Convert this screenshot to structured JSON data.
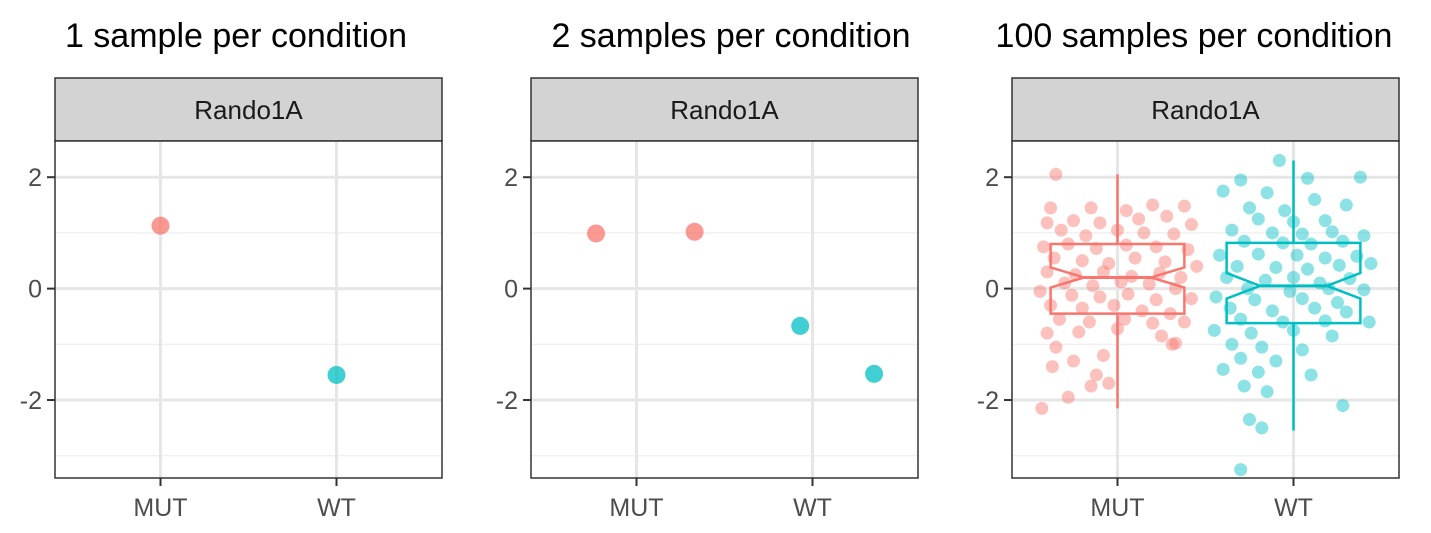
{
  "chart_data": [
    {
      "type": "scatter",
      "title": "1 sample per condition",
      "facet": "Rando1A",
      "categories": [
        "MUT",
        "WT"
      ],
      "ylim": [
        -3.4,
        2.65
      ],
      "yticks": [
        2,
        0,
        -2
      ],
      "ytick_labels": [
        "2",
        "0",
        "-2"
      ],
      "grid": true,
      "colors": {
        "MUT": "#F8766D",
        "WT": "#00BFC4"
      },
      "points": [
        {
          "group": "MUT",
          "x": 0,
          "y": 1.13
        },
        {
          "group": "WT",
          "x": 0,
          "y": -1.55
        }
      ]
    },
    {
      "type": "scatter",
      "title": "2 samples per condition",
      "facet": "Rando1A",
      "categories": [
        "MUT",
        "WT"
      ],
      "ylim": [
        -3.4,
        2.65
      ],
      "yticks": [
        2,
        0,
        -2
      ],
      "ytick_labels": [
        "2",
        "0",
        "-2"
      ],
      "grid": true,
      "colors": {
        "MUT": "#F8766D",
        "WT": "#00BFC4"
      },
      "points": [
        {
          "group": "MUT",
          "x": -0.23,
          "y": 0.99
        },
        {
          "group": "MUT",
          "x": 0.33,
          "y": 1.02
        },
        {
          "group": "WT",
          "x": -0.07,
          "y": -0.67
        },
        {
          "group": "WT",
          "x": 0.35,
          "y": -1.53
        }
      ]
    },
    {
      "type": "box",
      "title": "100 samples per condition",
      "facet": "Rando1A",
      "categories": [
        "MUT",
        "WT"
      ],
      "ylim": [
        -3.4,
        2.65
      ],
      "yticks": [
        2,
        0,
        -2
      ],
      "ytick_labels": [
        "2",
        "0",
        "-2"
      ],
      "grid": true,
      "notched": true,
      "colors": {
        "MUT": "#F8766D",
        "WT": "#00BFC4"
      },
      "boxes": [
        {
          "group": "MUT",
          "whisker_low": -2.15,
          "q1": -0.45,
          "median": 0.2,
          "q3": 0.8,
          "whisker_high": 2.05,
          "notch_low": 0.02,
          "notch_high": 0.38
        },
        {
          "group": "WT",
          "whisker_low": -2.55,
          "q1": -0.62,
          "median": 0.05,
          "q3": 0.82,
          "whisker_high": 2.3,
          "notch_low": -0.18,
          "notch_high": 0.28
        }
      ],
      "points": [
        {
          "group": "MUT",
          "x": -0.35,
          "y": 2.05
        },
        {
          "group": "MUT",
          "x": -0.38,
          "y": 1.45
        },
        {
          "group": "MUT",
          "x": -0.15,
          "y": 1.45
        },
        {
          "group": "MUT",
          "x": 0.05,
          "y": 1.4
        },
        {
          "group": "MUT",
          "x": 0.2,
          "y": 1.5
        },
        {
          "group": "MUT",
          "x": 0.38,
          "y": 1.48
        },
        {
          "group": "MUT",
          "x": -0.4,
          "y": 1.18
        },
        {
          "group": "MUT",
          "x": -0.25,
          "y": 1.22
        },
        {
          "group": "MUT",
          "x": -0.1,
          "y": 1.18
        },
        {
          "group": "MUT",
          "x": 0.12,
          "y": 1.25
        },
        {
          "group": "MUT",
          "x": 0.28,
          "y": 1.3
        },
        {
          "group": "MUT",
          "x": 0.42,
          "y": 1.15
        },
        {
          "group": "MUT",
          "x": -0.32,
          "y": 1.05
        },
        {
          "group": "MUT",
          "x": -0.18,
          "y": 0.95
        },
        {
          "group": "MUT",
          "x": 0.0,
          "y": 1.05
        },
        {
          "group": "MUT",
          "x": 0.15,
          "y": 1.0
        },
        {
          "group": "MUT",
          "x": 0.32,
          "y": 0.98
        },
        {
          "group": "MUT",
          "x": -0.42,
          "y": 0.75
        },
        {
          "group": "MUT",
          "x": -0.28,
          "y": 0.8
        },
        {
          "group": "MUT",
          "x": -0.12,
          "y": 0.72
        },
        {
          "group": "MUT",
          "x": 0.05,
          "y": 0.78
        },
        {
          "group": "MUT",
          "x": 0.22,
          "y": 0.75
        },
        {
          "group": "MUT",
          "x": 0.4,
          "y": 0.7
        },
        {
          "group": "MUT",
          "x": -0.36,
          "y": 0.55
        },
        {
          "group": "MUT",
          "x": -0.2,
          "y": 0.5
        },
        {
          "group": "MUT",
          "x": -0.05,
          "y": 0.45
        },
        {
          "group": "MUT",
          "x": 0.1,
          "y": 0.55
        },
        {
          "group": "MUT",
          "x": 0.27,
          "y": 0.48
        },
        {
          "group": "MUT",
          "x": 0.45,
          "y": 0.4
        },
        {
          "group": "MUT",
          "x": -0.4,
          "y": 0.3
        },
        {
          "group": "MUT",
          "x": -0.24,
          "y": 0.25
        },
        {
          "group": "MUT",
          "x": -0.08,
          "y": 0.3
        },
        {
          "group": "MUT",
          "x": 0.08,
          "y": 0.22
        },
        {
          "group": "MUT",
          "x": 0.24,
          "y": 0.28
        },
        {
          "group": "MUT",
          "x": 0.36,
          "y": 0.2
        },
        {
          "group": "MUT",
          "x": -0.3,
          "y": 0.1
        },
        {
          "group": "MUT",
          "x": -0.14,
          "y": 0.05
        },
        {
          "group": "MUT",
          "x": 0.02,
          "y": 0.12
        },
        {
          "group": "MUT",
          "x": 0.18,
          "y": 0.08
        },
        {
          "group": "MUT",
          "x": 0.33,
          "y": 0.0
        },
        {
          "group": "MUT",
          "x": -0.44,
          "y": -0.05
        },
        {
          "group": "MUT",
          "x": -0.26,
          "y": -0.12
        },
        {
          "group": "MUT",
          "x": -0.1,
          "y": -0.15
        },
        {
          "group": "MUT",
          "x": 0.06,
          "y": -0.1
        },
        {
          "group": "MUT",
          "x": 0.22,
          "y": -0.2
        },
        {
          "group": "MUT",
          "x": 0.42,
          "y": -0.18
        },
        {
          "group": "MUT",
          "x": -0.38,
          "y": -0.3
        },
        {
          "group": "MUT",
          "x": -0.2,
          "y": -0.35
        },
        {
          "group": "MUT",
          "x": -0.02,
          "y": -0.3
        },
        {
          "group": "MUT",
          "x": 0.14,
          "y": -0.4
        },
        {
          "group": "MUT",
          "x": 0.3,
          "y": -0.45
        },
        {
          "group": "MUT",
          "x": -0.33,
          "y": -0.55
        },
        {
          "group": "MUT",
          "x": -0.16,
          "y": -0.6
        },
        {
          "group": "MUT",
          "x": 0.04,
          "y": -0.55
        },
        {
          "group": "MUT",
          "x": 0.2,
          "y": -0.62
        },
        {
          "group": "MUT",
          "x": 0.38,
          "y": -0.6
        },
        {
          "group": "MUT",
          "x": -0.4,
          "y": -0.8
        },
        {
          "group": "MUT",
          "x": -0.22,
          "y": -0.78
        },
        {
          "group": "MUT",
          "x": 0.0,
          "y": -0.72
        },
        {
          "group": "MUT",
          "x": 0.25,
          "y": -0.85
        },
        {
          "group": "MUT",
          "x": 0.31,
          "y": -1.0
        },
        {
          "group": "MUT",
          "x": -0.35,
          "y": -1.05
        },
        {
          "group": "MUT",
          "x": -0.08,
          "y": -1.2
        },
        {
          "group": "MUT",
          "x": -0.37,
          "y": -1.4
        },
        {
          "group": "MUT",
          "x": -0.25,
          "y": -1.3
        },
        {
          "group": "MUT",
          "x": -0.12,
          "y": -1.55
        },
        {
          "group": "MUT",
          "x": -0.15,
          "y": -1.75
        },
        {
          "group": "MUT",
          "x": -0.05,
          "y": -1.7
        },
        {
          "group": "MUT",
          "x": -0.28,
          "y": -1.95
        },
        {
          "group": "MUT",
          "x": -0.43,
          "y": -2.15
        },
        {
          "group": "MUT",
          "x": 0.33,
          "y": -0.98
        },
        {
          "group": "WT",
          "x": -0.08,
          "y": 2.3
        },
        {
          "group": "WT",
          "x": -0.3,
          "y": 1.95
        },
        {
          "group": "WT",
          "x": 0.08,
          "y": 1.98
        },
        {
          "group": "WT",
          "x": 0.38,
          "y": 2.0
        },
        {
          "group": "WT",
          "x": -0.4,
          "y": 1.75
        },
        {
          "group": "WT",
          "x": -0.15,
          "y": 1.72
        },
        {
          "group": "WT",
          "x": 0.12,
          "y": 1.6
        },
        {
          "group": "WT",
          "x": 0.3,
          "y": 1.5
        },
        {
          "group": "WT",
          "x": -0.25,
          "y": 1.45
        },
        {
          "group": "WT",
          "x": -0.05,
          "y": 1.4
        },
        {
          "group": "WT",
          "x": -0.2,
          "y": 1.25
        },
        {
          "group": "WT",
          "x": 0.0,
          "y": 1.2
        },
        {
          "group": "WT",
          "x": 0.18,
          "y": 1.22
        },
        {
          "group": "WT",
          "x": -0.35,
          "y": 1.05
        },
        {
          "group": "WT",
          "x": -0.12,
          "y": 1.0
        },
        {
          "group": "WT",
          "x": 0.05,
          "y": 0.98
        },
        {
          "group": "WT",
          "x": 0.22,
          "y": 1.02
        },
        {
          "group": "WT",
          "x": 0.4,
          "y": 0.95
        },
        {
          "group": "WT",
          "x": -0.28,
          "y": 0.85
        },
        {
          "group": "WT",
          "x": -0.06,
          "y": 0.82
        },
        {
          "group": "WT",
          "x": 0.1,
          "y": 0.8
        },
        {
          "group": "WT",
          "x": 0.28,
          "y": 0.85
        },
        {
          "group": "WT",
          "x": -0.42,
          "y": 0.6
        },
        {
          "group": "WT",
          "x": -0.2,
          "y": 0.62
        },
        {
          "group": "WT",
          "x": 0.02,
          "y": 0.6
        },
        {
          "group": "WT",
          "x": 0.18,
          "y": 0.55
        },
        {
          "group": "WT",
          "x": 0.36,
          "y": 0.58
        },
        {
          "group": "WT",
          "x": -0.32,
          "y": 0.4
        },
        {
          "group": "WT",
          "x": -0.1,
          "y": 0.38
        },
        {
          "group": "WT",
          "x": 0.08,
          "y": 0.35
        },
        {
          "group": "WT",
          "x": 0.26,
          "y": 0.42
        },
        {
          "group": "WT",
          "x": 0.44,
          "y": 0.45
        },
        {
          "group": "WT",
          "x": -0.38,
          "y": 0.2
        },
        {
          "group": "WT",
          "x": -0.16,
          "y": 0.15
        },
        {
          "group": "WT",
          "x": 0.0,
          "y": 0.2
        },
        {
          "group": "WT",
          "x": 0.15,
          "y": 0.1
        },
        {
          "group": "WT",
          "x": 0.32,
          "y": 0.18
        },
        {
          "group": "WT",
          "x": -0.26,
          "y": 0.0
        },
        {
          "group": "WT",
          "x": -0.02,
          "y": -0.05
        },
        {
          "group": "WT",
          "x": 0.2,
          "y": 0.0
        },
        {
          "group": "WT",
          "x": 0.4,
          "y": -0.02
        },
        {
          "group": "WT",
          "x": -0.44,
          "y": -0.15
        },
        {
          "group": "WT",
          "x": -0.22,
          "y": -0.2
        },
        {
          "group": "WT",
          "x": 0.05,
          "y": -0.18
        },
        {
          "group": "WT",
          "x": 0.25,
          "y": -0.25
        },
        {
          "group": "WT",
          "x": -0.36,
          "y": -0.35
        },
        {
          "group": "WT",
          "x": -0.12,
          "y": -0.4
        },
        {
          "group": "WT",
          "x": 0.12,
          "y": -0.35
        },
        {
          "group": "WT",
          "x": 0.3,
          "y": -0.42
        },
        {
          "group": "WT",
          "x": -0.3,
          "y": -0.55
        },
        {
          "group": "WT",
          "x": -0.06,
          "y": -0.6
        },
        {
          "group": "WT",
          "x": 0.18,
          "y": -0.58
        },
        {
          "group": "WT",
          "x": 0.43,
          "y": -0.6
        },
        {
          "group": "WT",
          "x": -0.45,
          "y": -0.75
        },
        {
          "group": "WT",
          "x": -0.24,
          "y": -0.8
        },
        {
          "group": "WT",
          "x": 0.0,
          "y": -0.75
        },
        {
          "group": "WT",
          "x": 0.22,
          "y": -0.85
        },
        {
          "group": "WT",
          "x": -0.35,
          "y": -1.0
        },
        {
          "group": "WT",
          "x": -0.18,
          "y": -1.05
        },
        {
          "group": "WT",
          "x": 0.05,
          "y": -1.1
        },
        {
          "group": "WT",
          "x": -0.3,
          "y": -1.25
        },
        {
          "group": "WT",
          "x": -0.1,
          "y": -1.3
        },
        {
          "group": "WT",
          "x": -0.4,
          "y": -1.45
        },
        {
          "group": "WT",
          "x": -0.2,
          "y": -1.5
        },
        {
          "group": "WT",
          "x": 0.1,
          "y": -1.55
        },
        {
          "group": "WT",
          "x": -0.28,
          "y": -1.75
        },
        {
          "group": "WT",
          "x": -0.15,
          "y": -1.85
        },
        {
          "group": "WT",
          "x": 0.28,
          "y": -2.1
        },
        {
          "group": "WT",
          "x": -0.25,
          "y": -2.35
        },
        {
          "group": "WT",
          "x": -0.18,
          "y": -2.5
        },
        {
          "group": "WT",
          "x": -0.3,
          "y": -3.25
        }
      ]
    }
  ]
}
